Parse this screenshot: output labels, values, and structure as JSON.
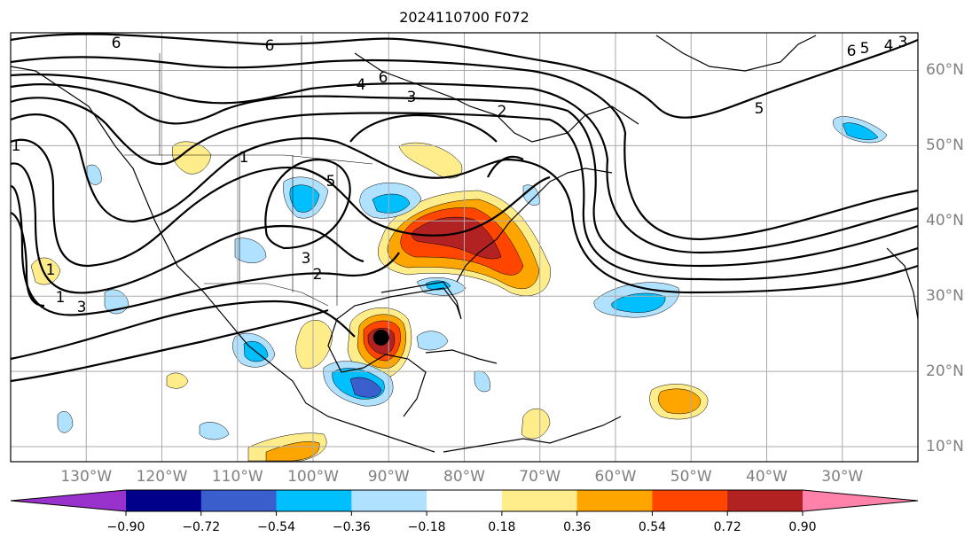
{
  "title": "2024110700 F072",
  "map": {
    "projection": "PlateCarree",
    "lon_range": [
      -140,
      -20
    ],
    "lat_range": [
      8,
      65
    ],
    "lon_ticks": [
      "130°W",
      "120°W",
      "110°W",
      "100°W",
      "90°W",
      "80°W",
      "70°W",
      "60°W",
      "50°W",
      "40°W",
      "30°W"
    ],
    "lat_ticks": [
      "10°N",
      "20°N",
      "30°N",
      "40°N",
      "50°N",
      "60°N"
    ],
    "gridlines": true,
    "marker": {
      "name": "storm-center",
      "lon": -91,
      "lat": 24.5,
      "color": "#000000"
    },
    "contour_labels": [
      "6",
      "6",
      "6",
      "4",
      "3",
      "2",
      "5",
      "6",
      "5",
      "4",
      "3",
      "5",
      "3",
      "2",
      "1",
      "1",
      "1",
      "3",
      "1"
    ]
  },
  "colorbar": {
    "orientation": "horizontal",
    "extend": "both",
    "colors": [
      "#9932cc",
      "#00008b",
      "#3a5fcd",
      "#00bfff",
      "#b0e2ff",
      "#ffffff",
      "#ffec8b",
      "#ffa500",
      "#ff4500",
      "#b22222",
      "#ff82ab"
    ],
    "tick_labels": [
      "−0.90",
      "−0.72",
      "−0.54",
      "−0.36",
      "−0.18",
      "0.18",
      "0.36",
      "0.54",
      "0.72",
      "0.90"
    ]
  }
}
